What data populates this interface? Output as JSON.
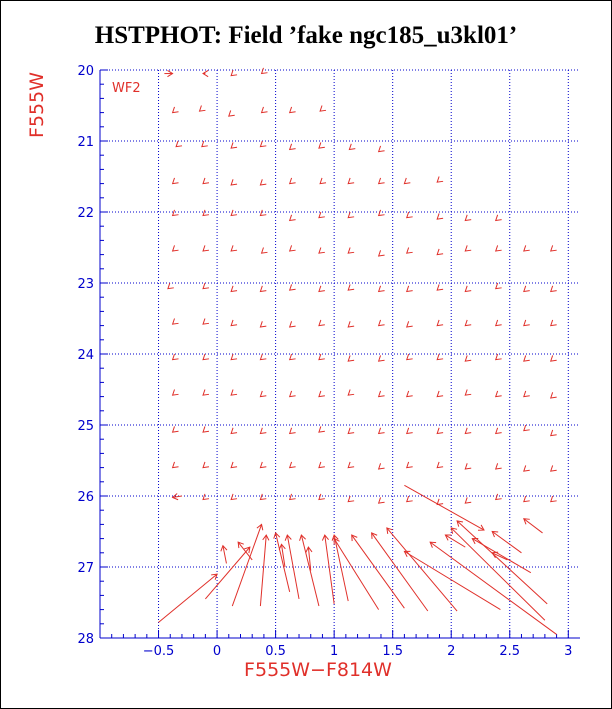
{
  "chart_data": {
    "type": "vector-field",
    "title": "HSTPHOT: Field ’fake ngc185_u3kl01’",
    "xlabel": "F555W−F814W",
    "ylabel": "F555W",
    "panel_label": "WF2",
    "xlim": [
      -1.0,
      3.1
    ],
    "ylim": [
      28,
      20
    ],
    "y_inverted": true,
    "grid": true,
    "x_ticks": [
      -0.5,
      0,
      0.5,
      1,
      1.5,
      2,
      2.5,
      3
    ],
    "x_tick_labels": [
      "−0.5",
      "0",
      "0.5",
      "1",
      "1.5",
      "2",
      "2.5",
      "3"
    ],
    "y_ticks": [
      20,
      21,
      22,
      23,
      24,
      25,
      26,
      27,
      28
    ],
    "y_tick_labels": [
      "20",
      "21",
      "22",
      "23",
      "24",
      "25",
      "26",
      "27",
      "28"
    ],
    "colors": {
      "axes": "#0000cc",
      "grid": "#0000cc",
      "vectors": "#e0302a",
      "title": "#000000"
    },
    "vectors_note": "each vector: [x_input, y_input, x_recovered, y_recovered] in data units",
    "vectors": [
      [
        -0.45,
        20.05,
        -0.38,
        20.05
      ],
      [
        -0.1,
        20.05,
        -0.12,
        20.05
      ],
      [
        0.12,
        20.08,
        0.12,
        20.08
      ],
      [
        0.38,
        20.05,
        0.38,
        20.05
      ],
      [
        -0.38,
        20.6,
        -0.38,
        20.6
      ],
      [
        -0.15,
        20.58,
        -0.15,
        20.58
      ],
      [
        0.1,
        20.65,
        0.1,
        20.65
      ],
      [
        0.38,
        20.6,
        0.38,
        20.6
      ],
      [
        0.62,
        20.6,
        0.62,
        20.6
      ],
      [
        0.88,
        20.58,
        0.88,
        20.58
      ],
      [
        -0.35,
        21.08,
        -0.35,
        21.08
      ],
      [
        -0.13,
        21.08,
        -0.13,
        21.08
      ],
      [
        0.12,
        21.1,
        0.12,
        21.1
      ],
      [
        0.37,
        21.08,
        0.37,
        21.08
      ],
      [
        0.62,
        21.12,
        0.62,
        21.12
      ],
      [
        0.87,
        21.1,
        0.87,
        21.1
      ],
      [
        1.13,
        21.12,
        1.13,
        21.12
      ],
      [
        1.38,
        21.15,
        1.38,
        21.15
      ],
      [
        -0.38,
        21.6,
        -0.38,
        21.6
      ],
      [
        -0.12,
        21.6,
        -0.12,
        21.6
      ],
      [
        0.12,
        21.62,
        0.12,
        21.62
      ],
      [
        0.37,
        21.62,
        0.37,
        21.62
      ],
      [
        0.62,
        21.6,
        0.62,
        21.6
      ],
      [
        0.88,
        21.6,
        0.88,
        21.6
      ],
      [
        1.12,
        21.6,
        1.12,
        21.6
      ],
      [
        1.38,
        21.6,
        1.38,
        21.6
      ],
      [
        1.6,
        21.6,
        1.6,
        21.6
      ],
      [
        1.88,
        21.58,
        1.88,
        21.58
      ],
      [
        -0.38,
        22.05,
        -0.38,
        22.05
      ],
      [
        -0.12,
        22.05,
        -0.12,
        22.05
      ],
      [
        0.12,
        22.05,
        0.12,
        22.05
      ],
      [
        0.37,
        22.05,
        0.37,
        22.05
      ],
      [
        0.62,
        22.12,
        0.62,
        22.12
      ],
      [
        0.87,
        22.08,
        0.87,
        22.08
      ],
      [
        1.12,
        22.08,
        1.12,
        22.08
      ],
      [
        1.38,
        22.05,
        1.38,
        22.05
      ],
      [
        1.62,
        22.08,
        1.62,
        22.08
      ],
      [
        1.88,
        22.1,
        1.88,
        22.1
      ],
      [
        2.12,
        22.12,
        2.12,
        22.12
      ],
      [
        2.38,
        22.12,
        2.38,
        22.12
      ],
      [
        -0.38,
        22.55,
        -0.38,
        22.55
      ],
      [
        -0.12,
        22.55,
        -0.12,
        22.55
      ],
      [
        0.12,
        22.55,
        0.12,
        22.55
      ],
      [
        0.38,
        22.58,
        0.38,
        22.58
      ],
      [
        0.62,
        22.55,
        0.62,
        22.55
      ],
      [
        0.87,
        22.58,
        0.87,
        22.58
      ],
      [
        1.12,
        22.58,
        1.12,
        22.58
      ],
      [
        1.38,
        22.62,
        1.38,
        22.62
      ],
      [
        1.62,
        22.58,
        1.62,
        22.58
      ],
      [
        1.88,
        22.6,
        1.88,
        22.6
      ],
      [
        2.12,
        22.55,
        2.12,
        22.55
      ],
      [
        2.38,
        22.55,
        2.38,
        22.55
      ],
      [
        2.62,
        22.55,
        2.62,
        22.55
      ],
      [
        2.85,
        22.55,
        2.85,
        22.55
      ],
      [
        -0.42,
        23.08,
        -0.42,
        23.08
      ],
      [
        -0.12,
        23.08,
        -0.12,
        23.08
      ],
      [
        0.12,
        23.12,
        0.12,
        23.12
      ],
      [
        0.37,
        23.12,
        0.37,
        23.12
      ],
      [
        0.62,
        23.1,
        0.62,
        23.1
      ],
      [
        0.87,
        23.12,
        0.87,
        23.12
      ],
      [
        1.12,
        23.1,
        1.12,
        23.1
      ],
      [
        1.38,
        23.12,
        1.38,
        23.12
      ],
      [
        1.62,
        23.12,
        1.62,
        23.12
      ],
      [
        1.88,
        23.1,
        1.88,
        23.1
      ],
      [
        2.12,
        23.12,
        2.12,
        23.12
      ],
      [
        2.38,
        23.08,
        2.38,
        23.08
      ],
      [
        2.62,
        23.12,
        2.62,
        23.12
      ],
      [
        2.85,
        23.12,
        2.85,
        23.12
      ],
      [
        -0.38,
        23.58,
        -0.38,
        23.58
      ],
      [
        -0.12,
        23.58,
        -0.12,
        23.58
      ],
      [
        0.12,
        23.6,
        0.12,
        23.6
      ],
      [
        0.37,
        23.62,
        0.37,
        23.62
      ],
      [
        0.62,
        23.62,
        0.62,
        23.62
      ],
      [
        0.87,
        23.6,
        0.87,
        23.6
      ],
      [
        1.12,
        23.62,
        1.12,
        23.62
      ],
      [
        1.38,
        23.6,
        1.38,
        23.6
      ],
      [
        1.62,
        23.62,
        1.62,
        23.62
      ],
      [
        1.88,
        23.6,
        1.88,
        23.6
      ],
      [
        2.12,
        23.6,
        2.12,
        23.6
      ],
      [
        2.38,
        23.6,
        2.38,
        23.6
      ],
      [
        2.62,
        23.6,
        2.62,
        23.6
      ],
      [
        2.85,
        23.6,
        2.85,
        23.6
      ],
      [
        -0.38,
        24.08,
        -0.38,
        24.08
      ],
      [
        -0.12,
        24.08,
        -0.12,
        24.08
      ],
      [
        0.12,
        24.08,
        0.12,
        24.08
      ],
      [
        0.37,
        24.08,
        0.37,
        24.08
      ],
      [
        0.62,
        24.08,
        0.62,
        24.08
      ],
      [
        0.87,
        24.08,
        0.87,
        24.08
      ],
      [
        1.12,
        24.1,
        1.12,
        24.1
      ],
      [
        1.38,
        24.1,
        1.38,
        24.1
      ],
      [
        1.62,
        24.08,
        1.62,
        24.08
      ],
      [
        1.88,
        24.08,
        1.88,
        24.08
      ],
      [
        2.12,
        24.1,
        2.12,
        24.1
      ],
      [
        2.38,
        24.08,
        2.38,
        24.08
      ],
      [
        2.62,
        24.1,
        2.62,
        24.1
      ],
      [
        2.85,
        24.1,
        2.85,
        24.1
      ],
      [
        -0.38,
        24.58,
        -0.38,
        24.58
      ],
      [
        -0.12,
        24.58,
        -0.12,
        24.58
      ],
      [
        0.12,
        24.58,
        0.12,
        24.58
      ],
      [
        0.37,
        24.6,
        0.37,
        24.6
      ],
      [
        0.62,
        24.6,
        0.62,
        24.6
      ],
      [
        0.87,
        24.6,
        0.87,
        24.6
      ],
      [
        1.12,
        24.58,
        1.12,
        24.58
      ],
      [
        1.38,
        24.6,
        1.38,
        24.6
      ],
      [
        1.62,
        24.6,
        1.62,
        24.6
      ],
      [
        1.88,
        24.6,
        1.88,
        24.6
      ],
      [
        2.12,
        24.58,
        2.12,
        24.58
      ],
      [
        2.38,
        24.6,
        2.38,
        24.6
      ],
      [
        2.62,
        24.6,
        2.62,
        24.6
      ],
      [
        2.85,
        24.62,
        2.85,
        24.62
      ],
      [
        -0.38,
        25.1,
        -0.38,
        25.1
      ],
      [
        -0.12,
        25.1,
        -0.12,
        25.1
      ],
      [
        0.12,
        25.12,
        0.12,
        25.12
      ],
      [
        0.37,
        25.12,
        0.37,
        25.12
      ],
      [
        0.62,
        25.12,
        0.62,
        25.12
      ],
      [
        0.87,
        25.1,
        0.87,
        25.1
      ],
      [
        1.12,
        25.12,
        1.12,
        25.12
      ],
      [
        1.38,
        25.12,
        1.38,
        25.12
      ],
      [
        1.62,
        25.12,
        1.62,
        25.12
      ],
      [
        1.88,
        25.12,
        1.88,
        25.12
      ],
      [
        2.12,
        25.12,
        2.12,
        25.12
      ],
      [
        2.38,
        25.12,
        2.38,
        25.12
      ],
      [
        2.62,
        25.08,
        2.62,
        25.08
      ],
      [
        2.85,
        25.15,
        2.85,
        25.15
      ],
      [
        -0.38,
        25.6,
        -0.38,
        25.6
      ],
      [
        -0.12,
        25.6,
        -0.12,
        25.6
      ],
      [
        0.12,
        25.6,
        0.12,
        25.6
      ],
      [
        0.37,
        25.6,
        0.37,
        25.6
      ],
      [
        0.62,
        25.6,
        0.62,
        25.6
      ],
      [
        0.87,
        25.6,
        0.87,
        25.6
      ],
      [
        1.12,
        25.6,
        1.12,
        25.6
      ],
      [
        1.38,
        25.62,
        1.38,
        25.62
      ],
      [
        1.62,
        25.6,
        1.62,
        25.6
      ],
      [
        1.88,
        25.6,
        1.88,
        25.6
      ],
      [
        2.12,
        25.62,
        2.12,
        25.62
      ],
      [
        2.38,
        25.62,
        2.38,
        25.62
      ],
      [
        2.62,
        25.65,
        2.62,
        25.65
      ],
      [
        2.85,
        25.65,
        2.85,
        25.65
      ],
      [
        -0.3,
        26.0,
        -0.38,
        26.02
      ],
      [
        -0.12,
        26.05,
        -0.12,
        26.05
      ],
      [
        0.12,
        26.05,
        0.12,
        26.05
      ],
      [
        0.37,
        26.05,
        0.37,
        26.05
      ],
      [
        0.62,
        26.05,
        0.62,
        26.05
      ],
      [
        0.87,
        26.05,
        0.87,
        26.05
      ],
      [
        1.12,
        26.08,
        1.12,
        26.08
      ],
      [
        1.38,
        26.1,
        1.38,
        26.1
      ],
      [
        1.62,
        26.08,
        1.62,
        26.08
      ],
      [
        1.88,
        26.12,
        1.88,
        26.12
      ],
      [
        2.12,
        26.1,
        2.12,
        26.1
      ],
      [
        2.38,
        26.05,
        2.38,
        26.05
      ],
      [
        2.62,
        26.08,
        2.62,
        26.08
      ],
      [
        2.85,
        26.08,
        2.85,
        26.08
      ],
      [
        -0.5,
        27.78,
        0.0,
        27.1
      ],
      [
        -0.1,
        27.45,
        0.28,
        26.72
      ],
      [
        0.13,
        27.55,
        0.38,
        26.4
      ],
      [
        0.37,
        27.55,
        0.42,
        26.55
      ],
      [
        0.62,
        27.35,
        0.5,
        26.52
      ],
      [
        0.7,
        27.45,
        0.6,
        26.55
      ],
      [
        0.87,
        27.55,
        0.72,
        26.55
      ],
      [
        1.0,
        27.52,
        0.92,
        26.55
      ],
      [
        1.12,
        27.48,
        1.0,
        26.55
      ],
      [
        1.38,
        27.6,
        1.0,
        26.6
      ],
      [
        1.6,
        27.58,
        1.15,
        26.55
      ],
      [
        1.8,
        27.62,
        1.32,
        26.52
      ],
      [
        2.05,
        27.62,
        1.45,
        26.45
      ],
      [
        2.42,
        27.6,
        1.6,
        26.78
      ],
      [
        2.8,
        27.75,
        2.0,
        26.45
      ],
      [
        2.9,
        27.95,
        1.82,
        26.65
      ],
      [
        2.82,
        27.52,
        2.05,
        26.35
      ],
      [
        2.68,
        27.08,
        2.18,
        26.6
      ],
      [
        2.6,
        26.8,
        2.35,
        26.5
      ],
      [
        1.6,
        25.85,
        2.28,
        26.48
      ],
      [
        2.78,
        26.52,
        2.62,
        26.32
      ],
      [
        2.48,
        26.9,
        2.35,
        26.8
      ],
      [
        2.12,
        26.72,
        1.95,
        26.55
      ],
      [
        0.8,
        27.05,
        0.78,
        26.72
      ],
      [
        0.58,
        27.0,
        0.55,
        26.68
      ],
      [
        0.3,
        26.9,
        0.18,
        26.65
      ],
      [
        0.08,
        26.95,
        0.05,
        26.7
      ]
    ]
  }
}
